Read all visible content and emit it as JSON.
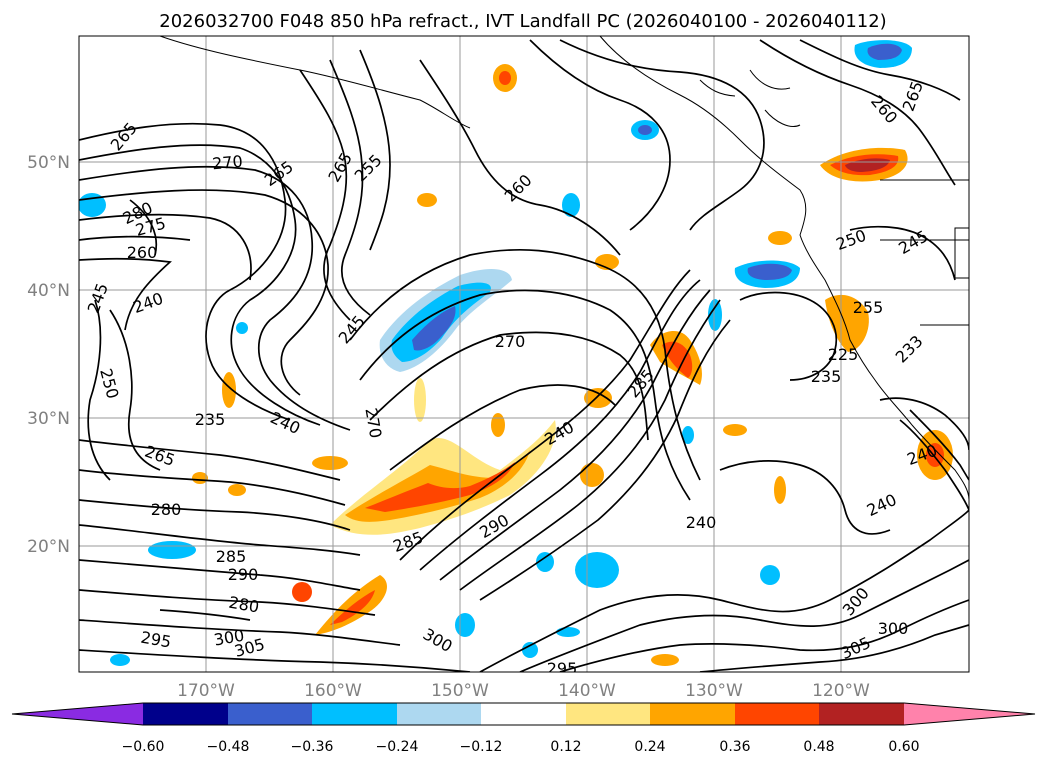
{
  "title": "2026032700 F048 850 hPa refract., IVT Landfall PC (2026040100 - 2026040112)",
  "map": {
    "lat_ticks": [
      "50°N",
      "40°N",
      "30°N",
      "20°N"
    ],
    "lon_ticks": [
      "170°W",
      "160°W",
      "150°W",
      "140°W",
      "130°W",
      "120°W"
    ],
    "grid": true,
    "contour_color": "#000000",
    "contour_labels": [
      "265",
      "270",
      "265",
      "265",
      "255",
      "260",
      "260",
      "265",
      "245",
      "250",
      "280",
      "275",
      "260",
      "245",
      "240",
      "250",
      "245",
      "270",
      "270",
      "235",
      "240",
      "285",
      "255",
      "265",
      "225",
      "235",
      "233",
      "280",
      "285",
      "285",
      "290",
      "290",
      "280",
      "240",
      "240",
      "295",
      "300",
      "305",
      "300",
      "295",
      "300",
      "305",
      "300",
      "240",
      "240"
    ]
  },
  "colorbar": {
    "ticks": [
      "−0.60",
      "−0.48",
      "−0.36",
      "−0.24",
      "−0.12",
      "0.12",
      "0.24",
      "0.36",
      "0.48",
      "0.60"
    ],
    "colors": [
      "#8a2be2",
      "#00008b",
      "#3a5fcd",
      "#00bfff",
      "#add8f0",
      "#ffffff",
      "#ffe680",
      "#ffa500",
      "#ff4500",
      "#b22222",
      "#ff82ab"
    ],
    "extend": "both"
  },
  "anomaly_colors": {
    "neg_light": "#add8f0",
    "neg_mid": "#00bfff",
    "neg_dark": "#3a5fcd",
    "pos_light": "#ffe680",
    "pos_mid": "#ffa500",
    "pos_dark": "#ff4500",
    "pos_darkest": "#b22222"
  }
}
